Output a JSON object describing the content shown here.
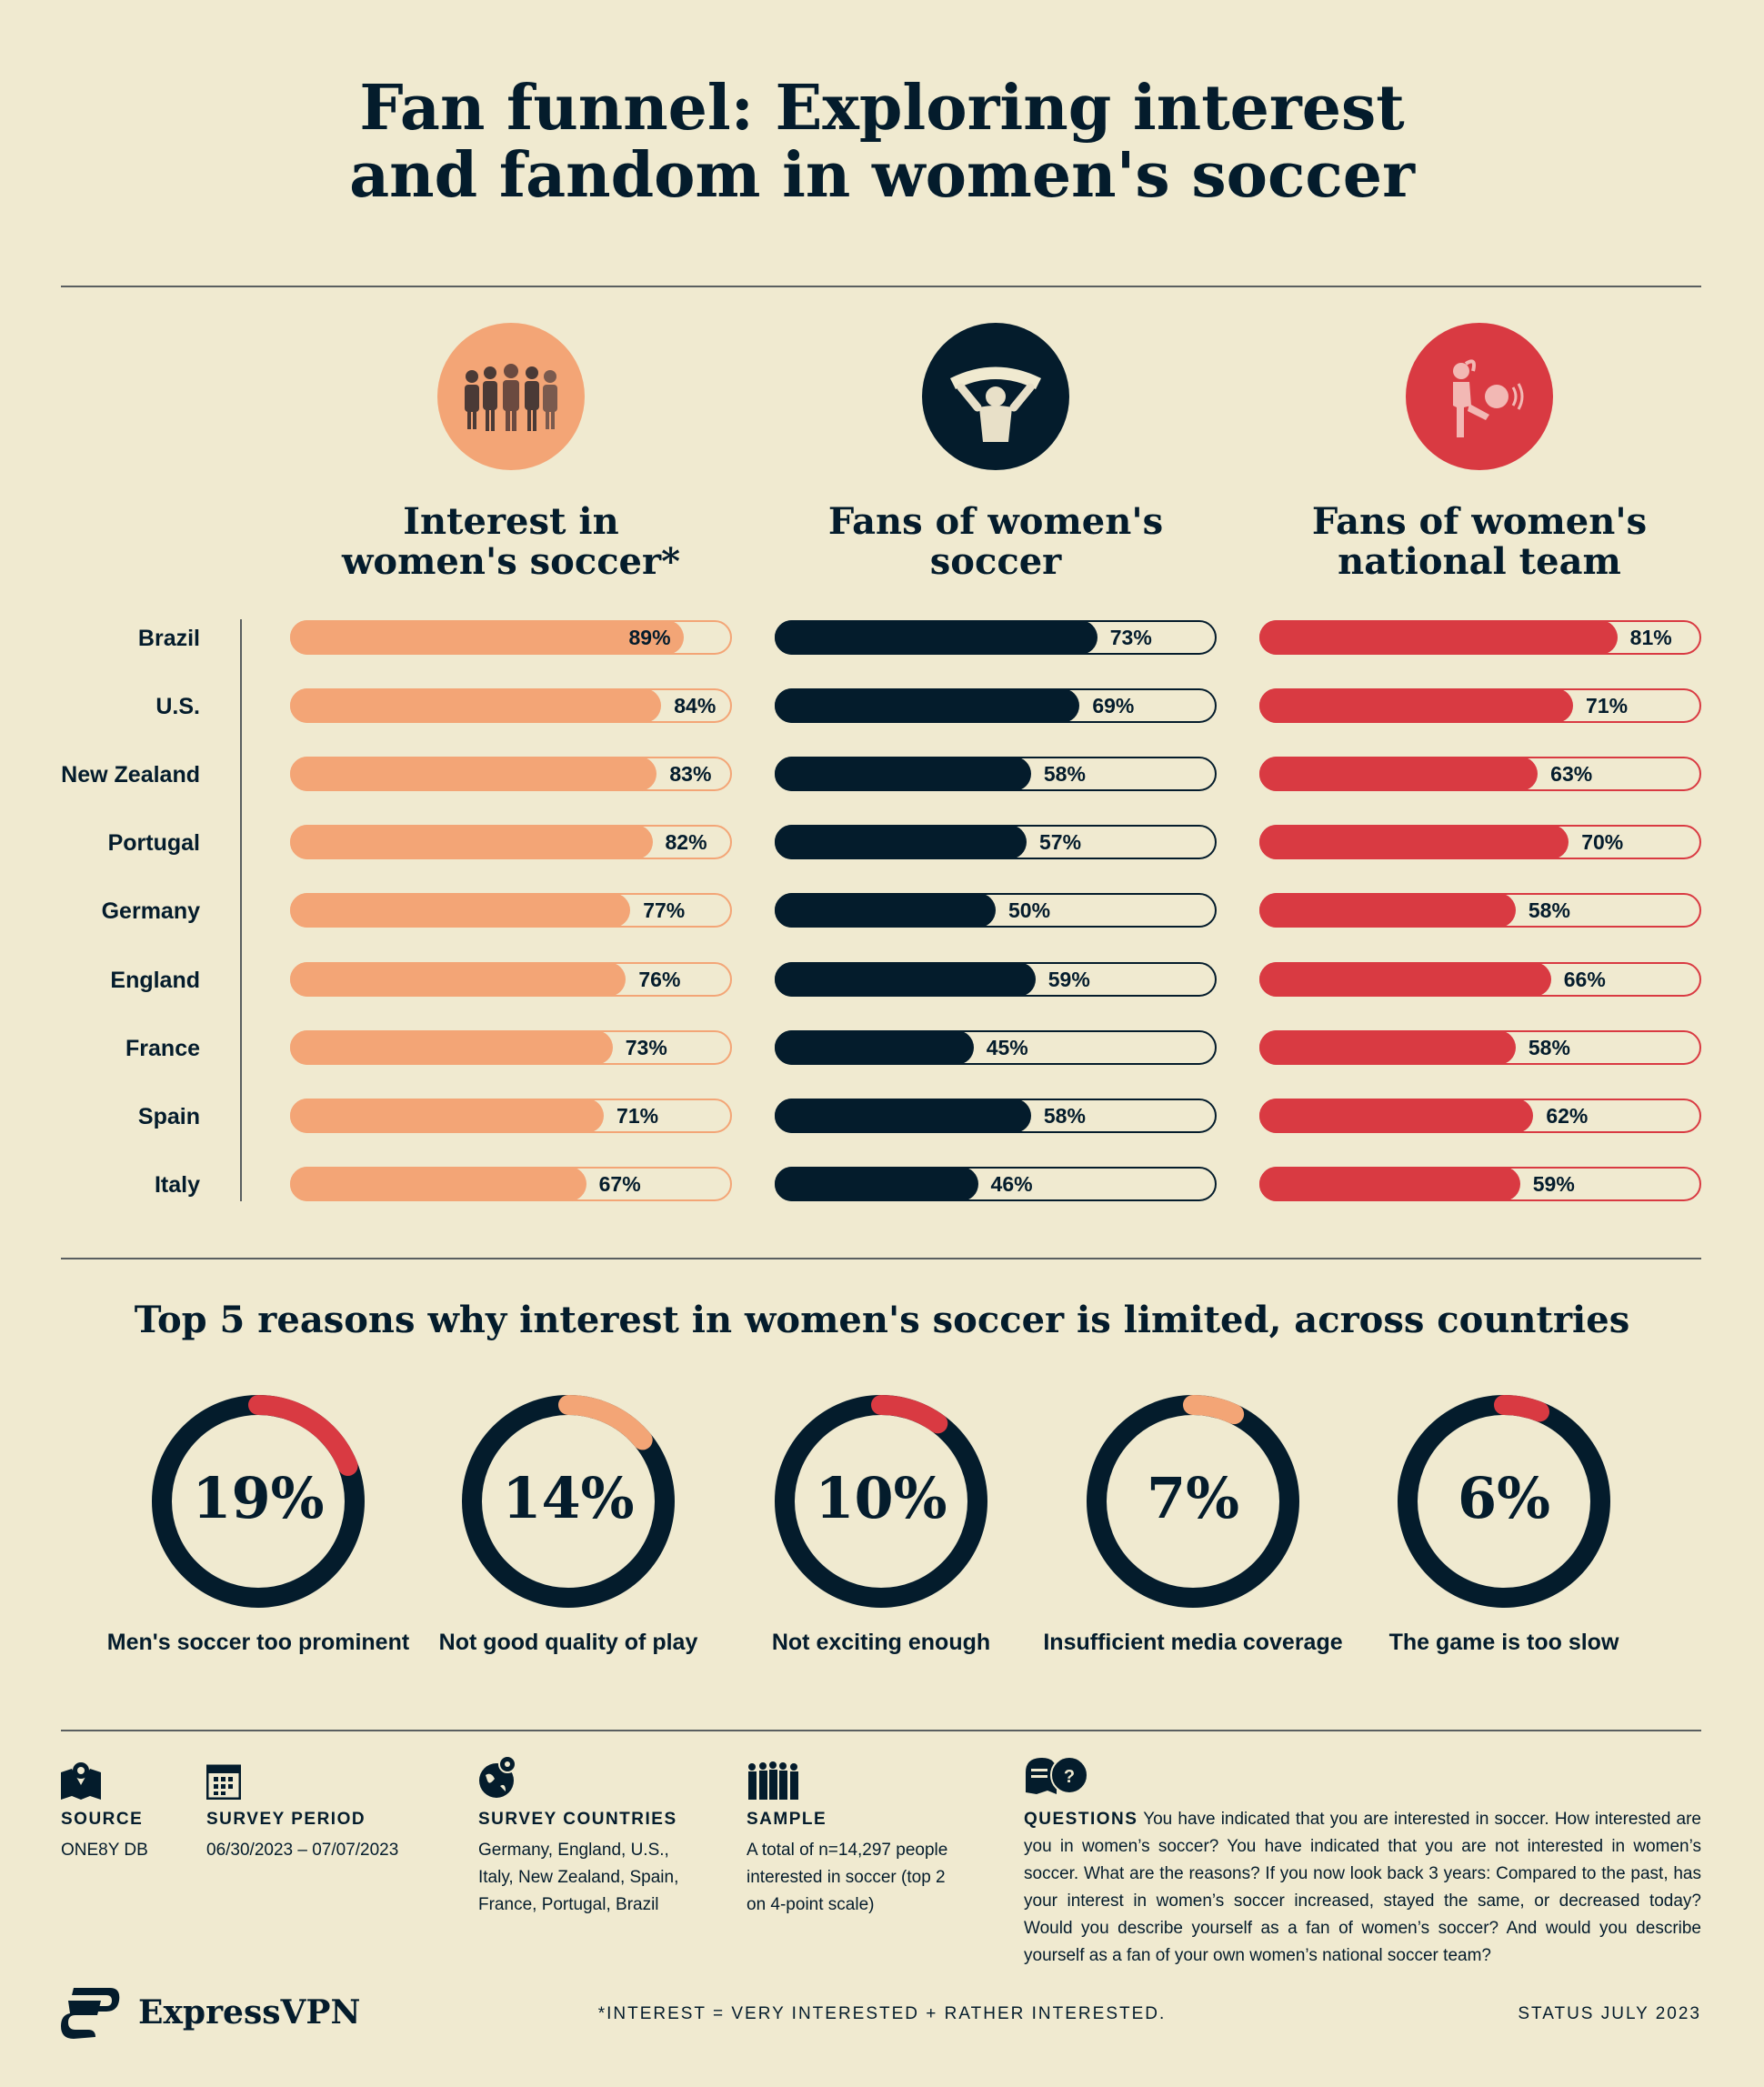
{
  "title": "Fan funnel: Exploring interest and fandom in women's soccer",
  "title_lines": [
    "Fan funnel: Exploring interest",
    "and fandom in women's soccer"
  ],
  "chart_data": [
    {
      "type": "bar",
      "orientation": "horizontal",
      "categories": [
        "Brazil",
        "U.S.",
        "New Zealand",
        "Portugal",
        "Germany",
        "England",
        "France",
        "Spain",
        "Italy"
      ],
      "xlim": [
        0,
        100
      ],
      "unit": "%",
      "series": [
        {
          "name": "Interest in women's soccer*",
          "name_lines": [
            "Interest in",
            "women's soccer*"
          ],
          "color": "#f3a576",
          "icon": "crowd-icon",
          "values": [
            89,
            84,
            83,
            82,
            77,
            76,
            73,
            71,
            67
          ]
        },
        {
          "name": "Fans of women's soccer",
          "name_lines": [
            "Fans of women's",
            "soccer"
          ],
          "color": "#041c2c",
          "icon": "fan-with-scarf-icon",
          "values": [
            73,
            69,
            58,
            57,
            50,
            59,
            45,
            58,
            46
          ]
        },
        {
          "name": "Fans of women's national team",
          "name_lines": [
            "Fans of women's",
            "national team"
          ],
          "color": "#d93a42",
          "icon": "player-kicking-ball-icon",
          "values": [
            81,
            71,
            63,
            70,
            58,
            66,
            58,
            62,
            59
          ]
        }
      ]
    },
    {
      "type": "donut",
      "title": "Top 5 reasons why interest in women's soccer is limited, across countries",
      "unit": "%",
      "items": [
        {
          "label": "Men's soccer too prominent",
          "value": 19,
          "color": "#d93a42"
        },
        {
          "label": "Not good quality of play",
          "value": 14,
          "color": "#f3a576"
        },
        {
          "label": "Not exciting enough",
          "value": 10,
          "color": "#d93a42"
        },
        {
          "label": "Insufficient media coverage",
          "value": 7,
          "color": "#f3a576"
        },
        {
          "label": "The game is too slow",
          "value": 6,
          "color": "#d93a42"
        }
      ]
    }
  ],
  "colors": {
    "background": "#f0ead0",
    "navy": "#041c2c",
    "peach": "#f3a576",
    "red": "#d93a42"
  },
  "footer": {
    "source": {
      "label": "SOURCE",
      "text": [
        "ONE8Y DB"
      ],
      "icon": "map-pin-icon"
    },
    "period": {
      "label": "SURVEY PERIOD",
      "text": [
        "06/30/2023 – 07/07/2023"
      ],
      "icon": "calendar-icon"
    },
    "countries": {
      "label": "SURVEY COUNTRIES",
      "text": [
        "Germany, England, U.S.,",
        "Italy, New Zealand, Spain,",
        "France, Portugal, Brazil"
      ],
      "icon": "globe-pin-icon"
    },
    "sample": {
      "label": "SAMPLE",
      "text": [
        "A total of n=14,297 people",
        "interested in soccer (top 2",
        "on 4-point scale)"
      ],
      "icon": "group-icon"
    },
    "questions": {
      "label": "QUESTIONS",
      "icon": "speech-bubbles-icon",
      "text": "You have indicated that you are interested in soccer. How interested are you in women’s soccer? You have indicated that you are not interested in women’s soccer. What are the reasons? If you now look back 3 years: Compared to the past, has your interest in women’s soccer increased, stayed the same, or decreased today? Would you describe yourself as a fan of women’s soccer? And would you describe yourself as a fan of your own women’s national soccer team?"
    },
    "brand": "ExpressVPN",
    "footnote": "*INTEREST = VERY INTERESTED + RATHER INTERESTED.",
    "status": "STATUS JULY 2023"
  }
}
